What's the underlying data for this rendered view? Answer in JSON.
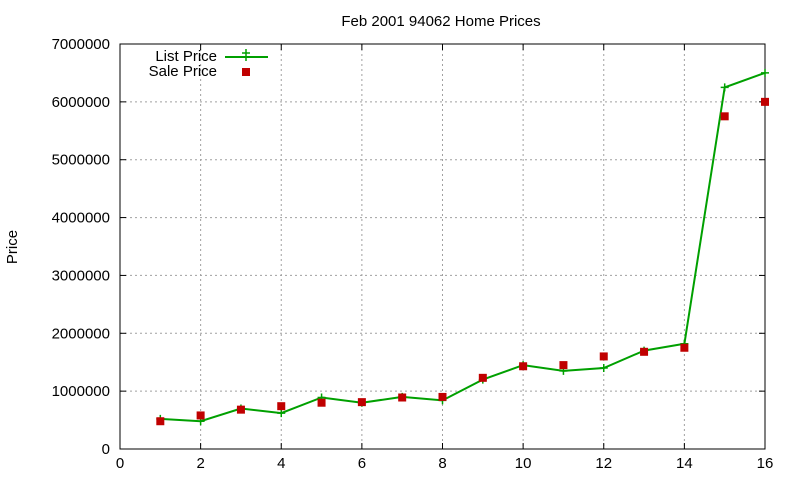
{
  "chart_data": {
    "type": "line",
    "title": "Feb 2001 94062 Home Prices",
    "xlabel": "",
    "ylabel": "Price",
    "xlim": [
      0,
      16
    ],
    "ylim": [
      0,
      7000000
    ],
    "xticks": [
      "0",
      "2",
      "4",
      "6",
      "8",
      "10",
      "12",
      "14",
      "16"
    ],
    "yticks": [
      "0",
      "1000000",
      "2000000",
      "3000000",
      "4000000",
      "5000000",
      "6000000",
      "7000000"
    ],
    "grid": true,
    "legend_position": "top-left",
    "series": [
      {
        "name": "List Price",
        "style": "line-with-plus-markers",
        "color": "#00a000",
        "x": [
          1,
          2,
          3,
          4,
          5,
          6,
          7,
          8,
          9,
          10,
          11,
          12,
          13,
          14,
          15,
          16
        ],
        "values": [
          520000,
          480000,
          700000,
          620000,
          890000,
          800000,
          900000,
          840000,
          1200000,
          1450000,
          1350000,
          1400000,
          1700000,
          1820000,
          6250000,
          6500000
        ]
      },
      {
        "name": "Sale Price",
        "style": "square-markers",
        "color": "#c00000",
        "x": [
          1,
          2,
          3,
          4,
          5,
          6,
          7,
          8,
          9,
          10,
          11,
          12,
          13,
          14,
          15,
          16
        ],
        "values": [
          480000,
          580000,
          680000,
          740000,
          800000,
          810000,
          890000,
          900000,
          1230000,
          1430000,
          1450000,
          1600000,
          1680000,
          1750000,
          5750000,
          6000000
        ]
      }
    ]
  }
}
